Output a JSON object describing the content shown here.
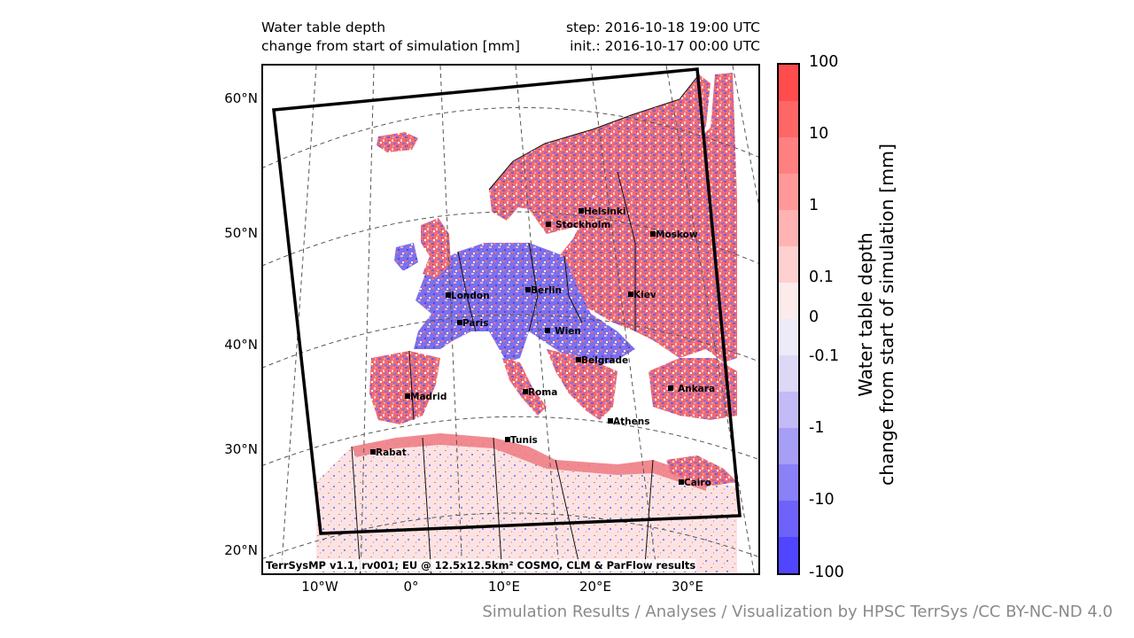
{
  "title": {
    "left_line1": "Water table depth",
    "left_line2": "change from start of simulation [mm]",
    "right_line1": "step: 2016-10-18 19:00 UTC",
    "right_line2": "init.: 2016-10-17 00:00 UTC"
  },
  "latitude_labels": [
    "60°N",
    "50°N",
    "40°N",
    "30°N",
    "20°N"
  ],
  "longitude_labels": [
    "10°W",
    "0°",
    "10°E",
    "20°E",
    "30°E"
  ],
  "map_credit": "TerrSysMP v1.1, rv001; EU @ 12.5x12.5km² COSMO, CLM & ParFlow results",
  "cities": [
    {
      "name": "Helsinki"
    },
    {
      "name": "Stockholm"
    },
    {
      "name": "Moskow"
    },
    {
      "name": "London"
    },
    {
      "name": "Berlin"
    },
    {
      "name": "Kiev"
    },
    {
      "name": "Paris"
    },
    {
      "name": "Wien"
    },
    {
      "name": "Belgrade"
    },
    {
      "name": "Madrid"
    },
    {
      "name": "Roma"
    },
    {
      "name": "Ankara"
    },
    {
      "name": "Athens"
    },
    {
      "name": "Tunis"
    },
    {
      "name": "Rabat"
    },
    {
      "name": "Cairo"
    }
  ],
  "colorbar": {
    "title_line1": "Water table depth",
    "title_line2": "change from start of simulation [mm]",
    "tick_labels": [
      "100",
      "10",
      "1",
      "0.1",
      "0",
      "-0.1",
      "-1",
      "-10",
      "-100"
    ],
    "colors_top_to_bottom": [
      "#ff4d4d",
      "#ff6666",
      "#ff8080",
      "#ff9999",
      "#ffb3b3",
      "#ffd0d0",
      "#fdebeb",
      "#ecebf7",
      "#dcd8f5",
      "#c3bbf6",
      "#a79ef5",
      "#8a80f8",
      "#6e62fb",
      "#5046ff"
    ],
    "scale": "symmetric logarithmic, -100 to 100 mm"
  },
  "footer_credit": "Simulation Results / Analyses / Visualization by HPSC TerrSys /CC BY-NC-ND 4.0"
}
